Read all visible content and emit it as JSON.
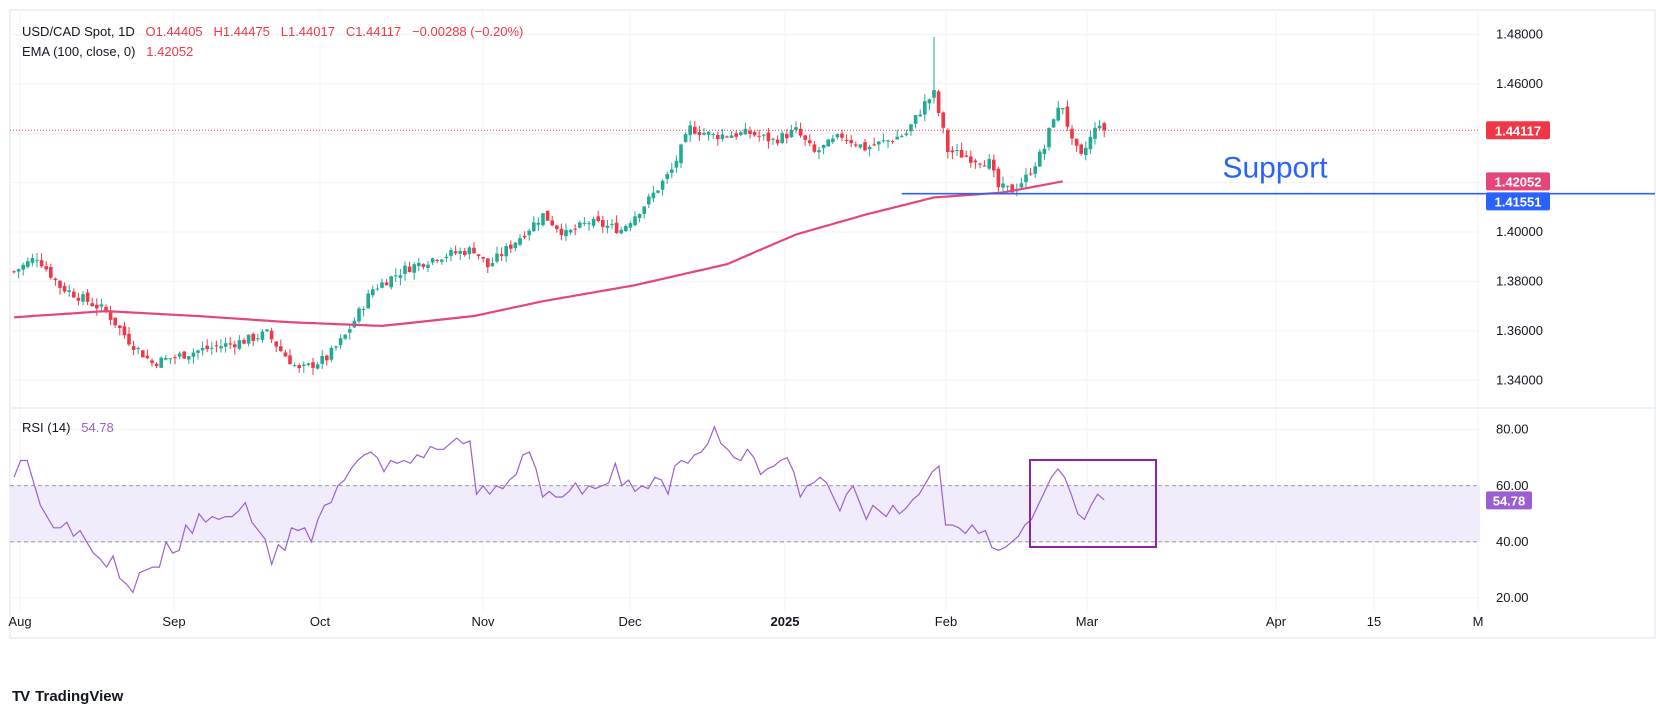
{
  "colors": {
    "up": "#22ab94",
    "down": "#f23645",
    "ema": "#e5467a",
    "support": "#2962ff",
    "rsi": "#9c5fd1",
    "rsi_band": "#f1ecfb",
    "grid": "#f0f3fa"
  },
  "legend": {
    "symbol": "USD/CAD Spot, 1D",
    "open": "O1.44405",
    "high": "H1.44475",
    "low": "L1.44017",
    "close": "C1.44117",
    "change": "−0.00288 (−0.20%)",
    "ema_label": "EMA (100, close, 0)",
    "ema_value": "1.42052",
    "rsi_label": "RSI (14)",
    "rsi_value": "54.78"
  },
  "brand": {
    "name": "TradingView",
    "logo": "TV"
  },
  "chart_data": [
    {
      "type": "candlestick",
      "ylim": [
        1.33,
        1.485
      ],
      "ytick_labels": [
        "1.48000",
        "1.46000",
        "1.44000",
        "1.42000",
        "1.40000",
        "1.38000",
        "1.36000",
        "1.34000"
      ],
      "yticks": [
        1.48,
        1.46,
        1.44,
        1.42,
        1.4,
        1.38,
        1.36,
        1.34
      ],
      "x_labels": [
        "Aug",
        "Sep",
        "Oct",
        "Nov",
        "Dec",
        "2025",
        "Feb",
        "Mar",
        "Apr",
        "15",
        "M"
      ],
      "price_tags": [
        {
          "label": "1.44117",
          "value": 1.44117,
          "color": "#f23645"
        },
        {
          "label": "1.42052",
          "value": 1.42052,
          "color": "#e5467a"
        },
        {
          "label": "1.41551",
          "value": 1.41551,
          "color": "#2962ff"
        }
      ],
      "last_close": 1.44117,
      "support": {
        "label": "Support",
        "value": 1.41551
      },
      "ema_series": {
        "name": "EMA (100, close, 0)",
        "anchors": [
          [
            0,
            1.3655
          ],
          [
            20,
            1.368
          ],
          [
            40,
            1.366
          ],
          [
            60,
            1.3635
          ],
          [
            80,
            1.362
          ],
          [
            100,
            1.366
          ],
          [
            115,
            1.372
          ],
          [
            135,
            1.3785
          ],
          [
            155,
            1.387
          ],
          [
            170,
            1.399
          ],
          [
            185,
            1.407
          ],
          [
            200,
            1.414
          ],
          [
            215,
            1.416
          ],
          [
            228,
            1.4205
          ]
        ]
      },
      "ohlc_anchors": [
        [
          0,
          1.384
        ],
        [
          5,
          1.39
        ],
        [
          10,
          1.378
        ],
        [
          20,
          1.368
        ],
        [
          25,
          1.356
        ],
        [
          30,
          1.347
        ],
        [
          40,
          1.352
        ],
        [
          50,
          1.356
        ],
        [
          55,
          1.359
        ],
        [
          58,
          1.352
        ],
        [
          62,
          1.344
        ],
        [
          68,
          1.349
        ],
        [
          72,
          1.358
        ],
        [
          78,
          1.377
        ],
        [
          85,
          1.385
        ],
        [
          92,
          1.39
        ],
        [
          100,
          1.393
        ],
        [
          103,
          1.386
        ],
        [
          110,
          1.398
        ],
        [
          115,
          1.407
        ],
        [
          120,
          1.399
        ],
        [
          125,
          1.404
        ],
        [
          132,
          1.401
        ],
        [
          138,
          1.413
        ],
        [
          143,
          1.425
        ],
        [
          147,
          1.442
        ],
        [
          152,
          1.439
        ],
        [
          160,
          1.44
        ],
        [
          165,
          1.437
        ],
        [
          170,
          1.441
        ],
        [
          174,
          1.432
        ],
        [
          180,
          1.439
        ],
        [
          185,
          1.434
        ],
        [
          190,
          1.437
        ],
        [
          194,
          1.44
        ],
        [
          198,
          1.452
        ],
        [
          200,
          1.456
        ],
        [
          203,
          1.433
        ],
        [
          208,
          1.43
        ],
        [
          212,
          1.428
        ],
        [
          214,
          1.418
        ],
        [
          217,
          1.417
        ],
        [
          220,
          1.422
        ],
        [
          224,
          1.434
        ],
        [
          226,
          1.447
        ],
        [
          228,
          1.451
        ],
        [
          230,
          1.436
        ],
        [
          232,
          1.43
        ],
        [
          234,
          1.438
        ],
        [
          236,
          1.4445
        ],
        [
          237,
          1.44117
        ]
      ]
    },
    {
      "type": "line",
      "ylim": [
        15,
        87
      ],
      "ytick_labels": [
        "80.00",
        "60.00",
        "40.00",
        "20.00"
      ],
      "yticks": [
        80,
        60,
        40,
        20
      ],
      "band": [
        40,
        60
      ],
      "series": [
        {
          "name": "RSI (14)",
          "values": [
            63,
            69,
            69,
            61,
            53,
            49,
            45,
            45,
            47,
            42,
            44,
            40,
            36,
            34,
            31,
            35,
            27,
            25,
            22,
            29,
            30,
            31,
            31,
            40,
            36,
            37,
            46,
            43,
            50,
            47,
            49,
            48,
            49,
            49,
            51,
            54,
            47,
            44,
            41,
            32,
            39,
            37,
            45,
            44,
            45,
            40,
            48,
            53,
            54,
            60,
            62,
            66,
            69,
            71,
            72,
            70,
            65,
            69,
            68,
            69,
            68,
            71,
            70,
            74,
            73,
            73,
            75,
            77,
            75,
            76,
            57,
            60,
            57,
            60,
            59,
            62,
            64,
            71,
            72,
            66,
            56,
            58,
            56,
            56,
            58,
            61,
            57,
            60,
            59,
            60,
            61,
            68,
            60,
            62,
            58,
            60,
            59,
            63,
            62,
            57,
            67,
            69,
            68,
            71,
            72,
            75,
            81,
            75,
            73,
            70,
            69,
            73,
            70,
            64,
            66,
            67,
            69,
            70,
            65,
            56,
            60,
            61,
            63,
            61,
            56,
            51,
            57,
            60,
            54,
            48,
            53,
            51,
            49,
            53,
            50,
            52,
            55,
            57,
            61,
            65,
            67,
            46,
            46,
            45,
            43,
            46,
            43,
            44,
            38,
            37,
            38,
            40,
            42,
            46,
            48,
            53,
            58,
            63,
            66,
            63,
            57,
            50,
            48,
            53,
            57,
            55
          ]
        }
      ],
      "last_value": 54.78,
      "annotation": "box around early March RSI"
    }
  ]
}
